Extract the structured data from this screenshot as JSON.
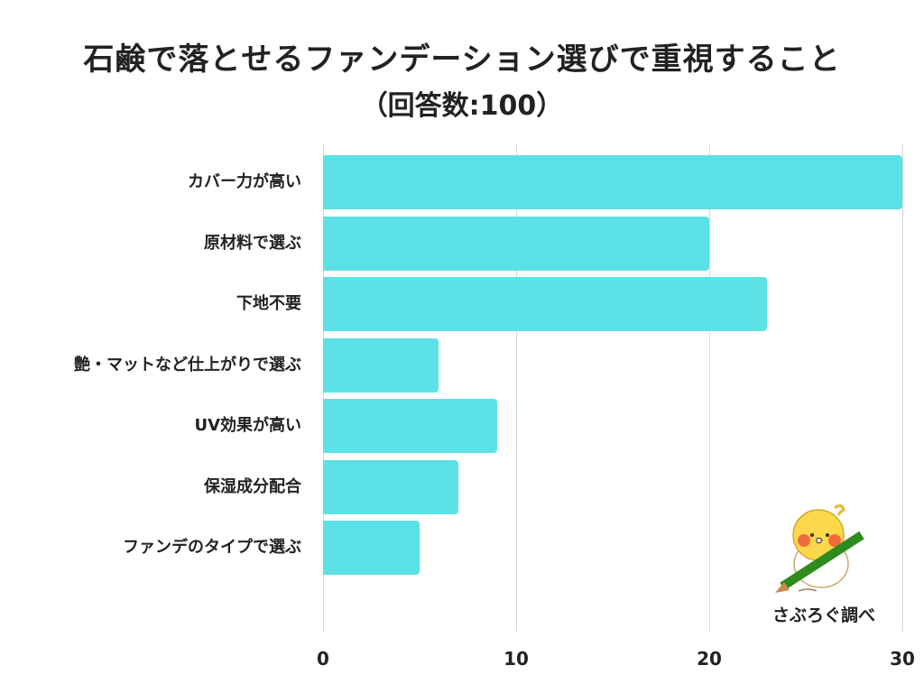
{
  "header": {
    "title": "石鹸で落とせるファンデーション選びで重視すること",
    "subtitle": "（回答数:100）"
  },
  "colors": {
    "bar": "#5ce1e6",
    "text": "#222222",
    "grid": "#d8d8d8"
  },
  "credit": "さぶろぐ調べ",
  "mascot_icon": "bird-with-pencil-icon",
  "chart_data": {
    "type": "bar",
    "orientation": "horizontal",
    "title": "石鹸で落とせるファンデーション選びで重視すること（回答数:100）",
    "categories": [
      "カバー力が高い",
      "原材料で選ぶ",
      "下地不要",
      "艶・マットなど仕上がりで選ぶ",
      "UV効果が高い",
      "保湿成分配合",
      "ファンデのタイプで選ぶ"
    ],
    "values": [
      30,
      20,
      23,
      6,
      9,
      7,
      5
    ],
    "xlabel": "",
    "ylabel": "",
    "xlim": [
      0,
      30
    ],
    "ticks": [
      "0",
      "10",
      "20",
      "30"
    ],
    "grid": true,
    "legend": null
  }
}
